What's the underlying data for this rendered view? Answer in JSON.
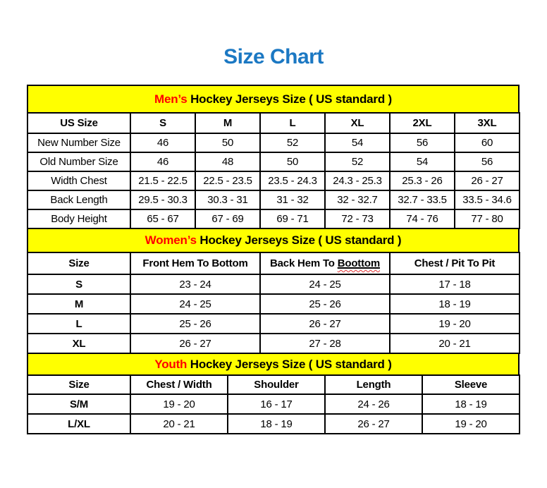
{
  "title": "Size Chart",
  "colors": {
    "title_blue": "#1B78C3",
    "accent_red": "#FF0000",
    "band_yellow": "#FFFF00",
    "border_black": "#000000"
  },
  "mens": {
    "caption": {
      "highlight": "Men’s",
      "rest": " Hockey Jerseys Size ( US standard )"
    },
    "columns": [
      "US Size",
      "S",
      "M",
      "L",
      "XL",
      "2XL",
      "3XL"
    ],
    "rows": [
      {
        "label": "New Number Size",
        "values": [
          "46",
          "50",
          "52",
          "54",
          "56",
          "60"
        ]
      },
      {
        "label": "Old Number Size",
        "values": [
          "46",
          "48",
          "50",
          "52",
          "54",
          "56"
        ]
      },
      {
        "label": "Width Chest",
        "values": [
          "21.5 - 22.5",
          "22.5 - 23.5",
          "23.5 - 24.3",
          "24.3 - 25.3",
          "25.3 - 26",
          "26 - 27"
        ]
      },
      {
        "label": "Back Length",
        "values": [
          "29.5 - 30.3",
          "30.3 - 31",
          "31 - 32",
          "32 - 32.7",
          "32.7 - 33.5",
          "33.5 - 34.6"
        ]
      },
      {
        "label": "Body Height",
        "values": [
          "65 - 67",
          "67 - 69",
          "69 - 71",
          "72 - 73",
          "74 - 76",
          "77 - 80"
        ]
      }
    ]
  },
  "womens": {
    "caption": {
      "highlight": "Women’s",
      "rest": " Hockey Jerseys Size ( US standard )"
    },
    "columns": {
      "size": "Size",
      "front": "Front Hem To Bottom",
      "back_prefix": "Back Hem To ",
      "back_misspelled": "Boottom",
      "chest": "Chest / Pit To Pit"
    },
    "rows": [
      {
        "label": "S",
        "values": [
          "23 - 24",
          "24 - 25",
          "17 - 18"
        ]
      },
      {
        "label": "M",
        "values": [
          "24 - 25",
          "25 - 26",
          "18 - 19"
        ]
      },
      {
        "label": "L",
        "values": [
          "25 - 26",
          "26 - 27",
          "19 - 20"
        ]
      },
      {
        "label": "XL",
        "values": [
          "26 - 27",
          "27 - 28",
          "20 - 21"
        ]
      }
    ]
  },
  "youth": {
    "caption": {
      "highlight": "Youth",
      "rest": " Hockey Jerseys Size ( US standard )"
    },
    "columns": [
      "Size",
      "Chest / Width",
      "Shoulder",
      "Length",
      "Sleeve"
    ],
    "rows": [
      {
        "label": "S/M",
        "values": [
          "19 - 20",
          "16 - 17",
          "24 - 26",
          "18 - 19"
        ]
      },
      {
        "label": "L/XL",
        "values": [
          "20 - 21",
          "18 - 19",
          "26 - 27",
          "19 - 20"
        ]
      }
    ]
  }
}
